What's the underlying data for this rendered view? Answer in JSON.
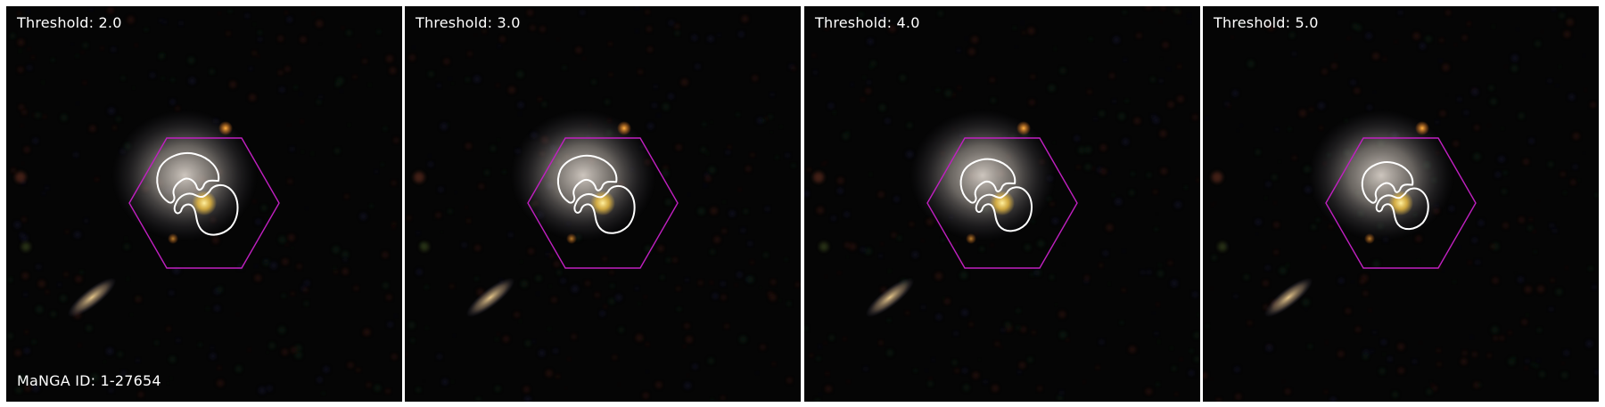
{
  "panels": [
    {
      "threshold_label": "Threshold: 2.0",
      "caption": "MaNGA ID: 1-27654"
    },
    {
      "threshold_label": "Threshold: 3.0",
      "caption": ""
    },
    {
      "threshold_label": "Threshold: 4.0",
      "caption": ""
    },
    {
      "threshold_label": "Threshold: 5.0",
      "caption": ""
    }
  ],
  "colors": {
    "background": "#050505",
    "hexagon": "#c020c0",
    "contour": "#ffffff",
    "galaxy_core": "#f0c040",
    "galaxy_halo": "#b8b0a8",
    "text": "#ffffff"
  },
  "contour_scale": [
    1.0,
    0.95,
    0.88,
    0.82
  ]
}
